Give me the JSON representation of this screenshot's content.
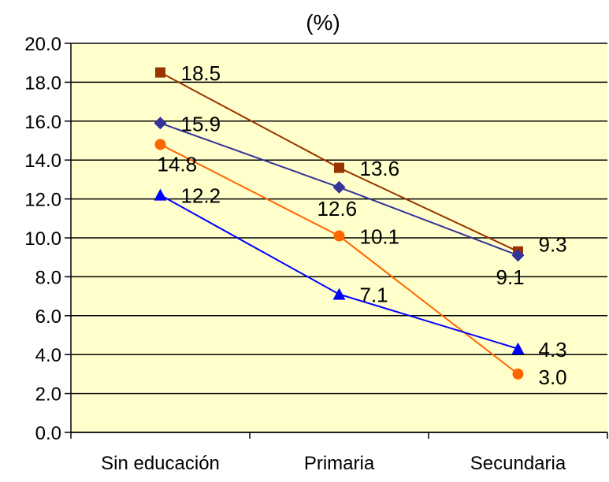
{
  "chart_data": {
    "type": "line",
    "title": "(%)",
    "xlabel": "",
    "ylabel": "",
    "categories": [
      "Sin educación",
      "Primaria",
      "Secundaria"
    ],
    "ylim": [
      0,
      20
    ],
    "ytick_step": 2,
    "yticks": [
      "0.0",
      "2.0",
      "4.0",
      "6.0",
      "8.0",
      "10.0",
      "12.0",
      "14.0",
      "16.0",
      "18.0",
      "20.0"
    ],
    "grid": true,
    "legend": "none",
    "plot_background": "#FFFFCC",
    "series": [
      {
        "values": [
          18.5,
          13.6,
          9.3
        ],
        "labels": [
          "18.5",
          "13.6",
          "9.3"
        ],
        "color": "#993300",
        "marker": "square"
      },
      {
        "values": [
          15.9,
          12.6,
          9.1
        ],
        "labels": [
          "15.9",
          "12.6",
          "9.1"
        ],
        "color": "#333399",
        "marker": "diamond"
      },
      {
        "values": [
          14.8,
          10.1,
          3.0
        ],
        "labels": [
          "14.8",
          "10.1",
          "3.0"
        ],
        "color": "#FF6600",
        "marker": "circle"
      },
      {
        "values": [
          12.2,
          7.1,
          4.3
        ],
        "labels": [
          "12.2",
          "7.1",
          "4.3"
        ],
        "color": "#0000FF",
        "marker": "triangle"
      }
    ]
  }
}
